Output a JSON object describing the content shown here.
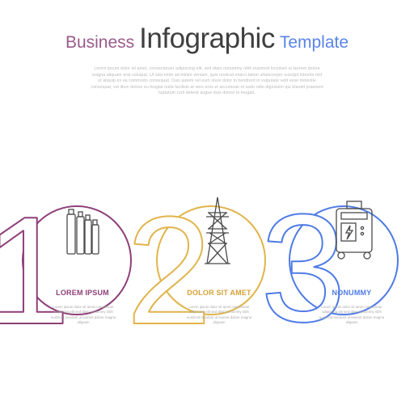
{
  "header": {
    "title_part1": "Business",
    "title_part2": "Infographic",
    "title_part3": "Template",
    "intro_text": "Lorem ipsum dolor sit amet, consectetuer adipiscing elit, sed diam nonummy nibh euismod tincidunt ut laoreet dolore magna aliquam erat volutpat. Ut wisi enim ad minim veniam, quis nostrud exerci tation ullamcorper suscipit lobortis nisl ut aliquip ex ea commodo consequat. Duis autem vel eum iriure dolor in hendrerit in vulputate velit esse molestie consequat, vel illum dolore eu feugiat nulla facilisis at vero eros et accumsan et iusto odio dignissim qui blandit praesent luptatum zzril delenit augue duis dolore te feugait."
  },
  "colors": {
    "step1": "#8e3f78",
    "step2": "#e0b44a",
    "step3": "#4f7be6",
    "icon": "#4a4a4a"
  },
  "steps": [
    {
      "number": "1",
      "title": "LOREM IPSUM",
      "icon": "battery-pack-icon",
      "description": "Lorem ipsum dolor sit amet consectetur adipiscing elit sed diam nonummy nibh euismod tincidunt ut laoreet dolore magna aliquam"
    },
    {
      "number": "2",
      "title": "DOLOR SIT AMET",
      "icon": "electric-tower-icon",
      "description": "Lorem ipsum dolor sit amet consectetur adipiscing elit sed diam nonummy nibh euismod tincidunt ut laoreet dolore magna aliquam"
    },
    {
      "number": "3",
      "title": "NONUMMY",
      "icon": "power-generator-icon",
      "description": "Lorem ipsum dolor sit amet consectetur adipiscing elit sed diam nonummy nibh euismod tincidunt ut laoreet dolore magna aliquam"
    }
  ]
}
